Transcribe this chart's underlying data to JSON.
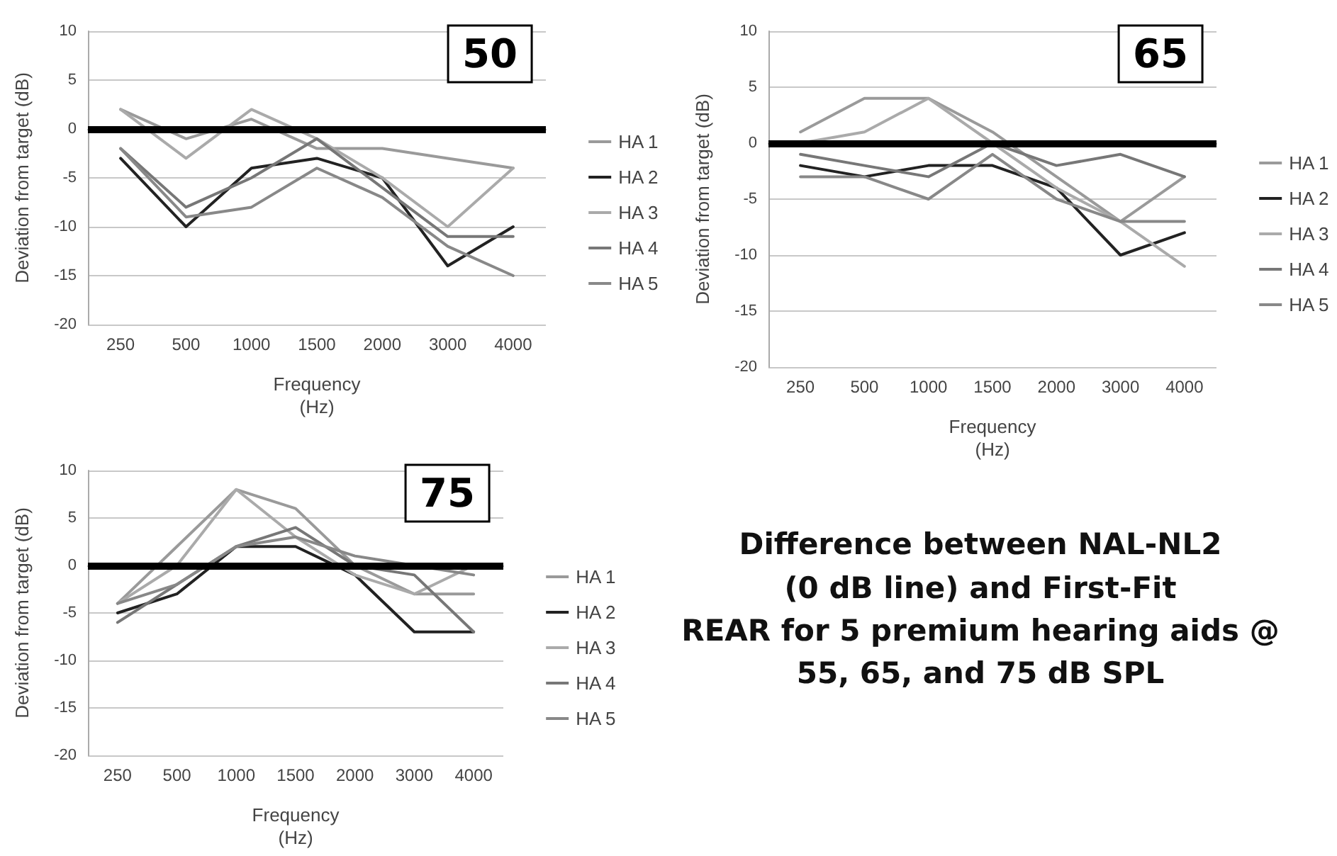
{
  "chart_data": [
    {
      "type": "line",
      "title": "50",
      "xlabel": "Frequency\n(Hz)",
      "ylabel": "Deviation from target (dB)",
      "categories": [
        "250",
        "500",
        "1000",
        "1500",
        "2000",
        "3000",
        "4000"
      ],
      "series": [
        {
          "name": "HA 1",
          "color": "#9a9a9a",
          "values": [
            2,
            -1,
            1,
            -2,
            -2,
            -3,
            -4
          ]
        },
        {
          "name": "HA 2",
          "color": "#222222",
          "values": [
            -3,
            -10,
            -4,
            -3,
            -5,
            -14,
            -10
          ]
        },
        {
          "name": "HA 3",
          "color": "#aaaaaa",
          "values": [
            2,
            -3,
            2,
            -1,
            -5,
            -10,
            -4
          ]
        },
        {
          "name": "HA 4",
          "color": "#777777",
          "values": [
            -2,
            -8,
            -5,
            -1,
            -6,
            -11,
            -11
          ]
        },
        {
          "name": "HA 5",
          "color": "#888888",
          "values": [
            -2,
            -9,
            -8,
            -4,
            -7,
            -12,
            -15
          ]
        }
      ],
      "ylim": [
        -20,
        10
      ],
      "yticks": [
        -20,
        -15,
        -10,
        -5,
        0,
        5,
        10
      ],
      "grid": "y",
      "legend": "right",
      "marker": "none",
      "ref_lines": [
        {
          "axis": "y",
          "value": 0,
          "color": "#000000"
        }
      ]
    },
    {
      "type": "line",
      "title": "65",
      "xlabel": "Frequency\n(Hz)",
      "ylabel": "Deviation from target (dB)",
      "categories": [
        "250",
        "500",
        "1000",
        "1500",
        "2000",
        "3000",
        "4000"
      ],
      "series": [
        {
          "name": "HA 1",
          "color": "#9a9a9a",
          "values": [
            1,
            4,
            4,
            1,
            -3,
            -7,
            -3
          ]
        },
        {
          "name": "HA 2",
          "color": "#222222",
          "values": [
            -2,
            -3,
            -2,
            -2,
            -4,
            -10,
            -8
          ]
        },
        {
          "name": "HA 3",
          "color": "#aaaaaa",
          "values": [
            0,
            1,
            4,
            0,
            -4,
            -7,
            -11
          ]
        },
        {
          "name": "HA 4",
          "color": "#777777",
          "values": [
            -1,
            -2,
            -3,
            0,
            -2,
            -1,
            -3
          ]
        },
        {
          "name": "HA 5",
          "color": "#888888",
          "values": [
            -3,
            -3,
            -5,
            -1,
            -5,
            -7,
            -7
          ]
        }
      ],
      "ylim": [
        -20,
        10
      ],
      "yticks": [
        -20,
        -15,
        -10,
        -5,
        0,
        5,
        10
      ],
      "grid": "y",
      "legend": "right",
      "marker": "none",
      "ref_lines": [
        {
          "axis": "y",
          "value": 0,
          "color": "#000000"
        }
      ]
    },
    {
      "type": "line",
      "title": "75",
      "xlabel": "Frequency\n(Hz)",
      "ylabel": "Deviation from target (dB)",
      "categories": [
        "250",
        "500",
        "1000",
        "1500",
        "2000",
        "3000",
        "4000"
      ],
      "series": [
        {
          "name": "HA 1",
          "color": "#9a9a9a",
          "values": [
            -4,
            2,
            8,
            6,
            0,
            -3,
            -3
          ]
        },
        {
          "name": "HA 2",
          "color": "#222222",
          "values": [
            -5,
            -3,
            2,
            2,
            -1,
            -7,
            -7
          ]
        },
        {
          "name": "HA 3",
          "color": "#aaaaaa",
          "values": [
            -4,
            0,
            8,
            3,
            -1,
            -3,
            0
          ]
        },
        {
          "name": "HA 4",
          "color": "#777777",
          "values": [
            -6,
            -2,
            2,
            4,
            0,
            -1,
            -7
          ]
        },
        {
          "name": "HA 5",
          "color": "#888888",
          "values": [
            -4,
            -2,
            2,
            3,
            1,
            0,
            -1
          ]
        }
      ],
      "ylim": [
        -20,
        10
      ],
      "yticks": [
        -20,
        -15,
        -10,
        -5,
        0,
        5,
        10
      ],
      "grid": "y",
      "legend": "right",
      "marker": "none",
      "ref_lines": [
        {
          "axis": "y",
          "value": 0,
          "color": "#000000"
        }
      ]
    },
    {
      "type": "other",
      "title": "Difference between NAL-NL2\n(0 dB line) and First-Fit\nREAR for 5 premium hearing aids @\n55, 65, and 75 dB SPL"
    }
  ]
}
